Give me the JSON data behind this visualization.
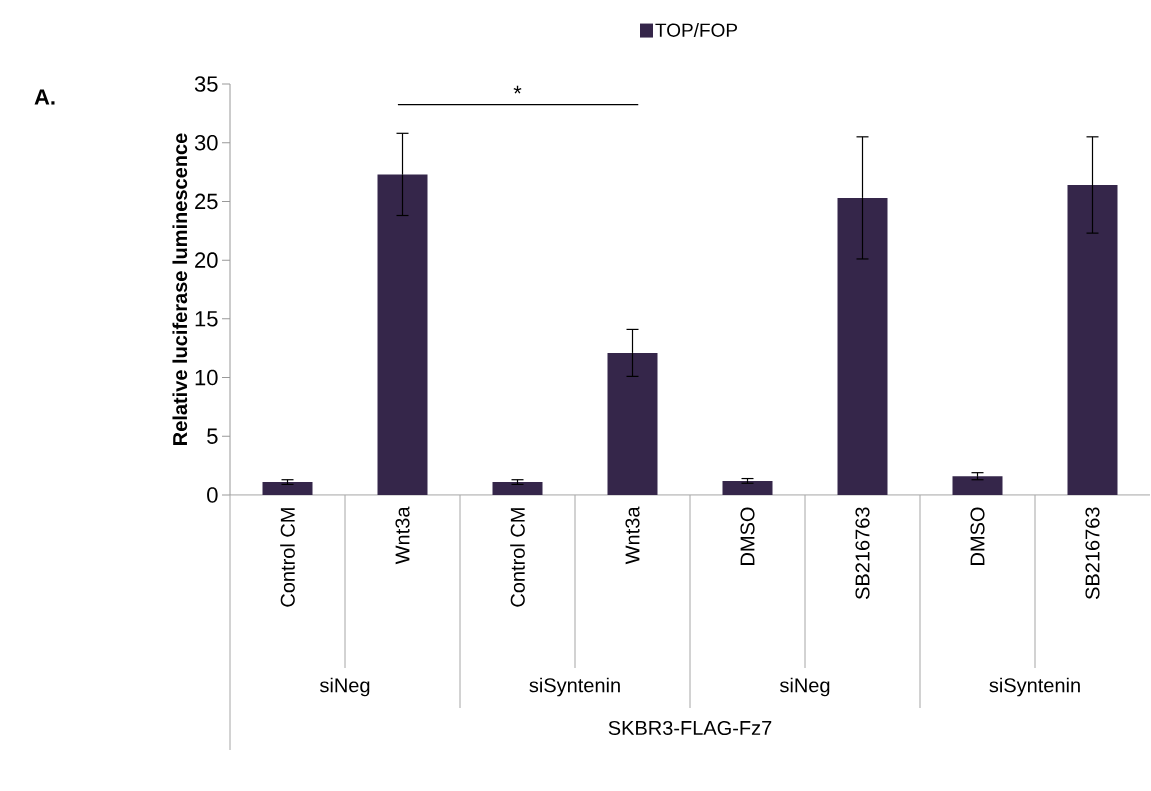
{
  "chart_data": {
    "type": "bar",
    "categories": [
      "Control CM",
      "Wnt3a",
      "Control CM",
      "Wnt3a",
      "DMSO",
      "SB216763",
      "DMSO",
      "SB216763"
    ],
    "series": [
      {
        "name": "TOP/FOP",
        "color": "#35264a",
        "values": [
          1.1,
          27.3,
          1.1,
          12.1,
          1.2,
          25.3,
          1.6,
          26.4
        ],
        "errors": [
          0.2,
          3.5,
          0.2,
          2.0,
          0.2,
          5.2,
          0.3,
          4.1
        ]
      }
    ],
    "ylabel": "Relative luciferase  luminescence",
    "ylim": [
      0,
      35
    ],
    "yticks": [
      0,
      5,
      10,
      15,
      20,
      25,
      30,
      35
    ],
    "legend": "top",
    "annotations": [
      "A.",
      "*",
      "siNeg",
      "siSyntenin",
      "siNeg",
      "siSyntenin",
      "SKBR3-FLAG-Fz7"
    ]
  }
}
